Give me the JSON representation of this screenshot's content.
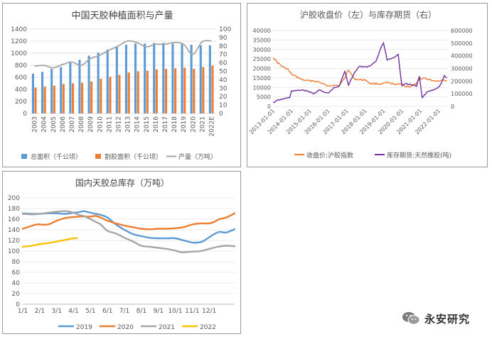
{
  "watermark": "永安研究",
  "charts": [
    {
      "type": "bar+line",
      "title": "中国天胶种植面积与产量",
      "categories": [
        "2003",
        "2004",
        "2005",
        "2006",
        "2007",
        "2008",
        "2009",
        "2010",
        "2011",
        "2012",
        "2013",
        "2014",
        "2015",
        "2016",
        "2017",
        "2018",
        "2019",
        "2020",
        "2021",
        "2022E"
      ],
      "y_left": {
        "ticks": [
          0,
          200,
          400,
          600,
          800,
          1000,
          1200,
          1400
        ],
        "range": [
          0,
          1400
        ]
      },
      "y_right": {
        "ticks": [
          0,
          10,
          20,
          30,
          40,
          50,
          60,
          70,
          80,
          90,
          100
        ],
        "range": [
          0,
          100
        ]
      },
      "series": [
        {
          "name": "总面积（千公顷）",
          "type": "bar",
          "axis": "left",
          "color": "#5b9bd5",
          "values": [
            660,
            690,
            740,
            770,
            860,
            890,
            960,
            1010,
            1060,
            1110,
            1140,
            1160,
            1160,
            1170,
            1170,
            1160,
            1150,
            1140,
            1130,
            1130
          ]
        },
        {
          "name": "割胶面积（千公顷）",
          "type": "bar",
          "axis": "left",
          "color": "#ed7d31",
          "values": [
            430,
            445,
            460,
            490,
            500,
            510,
            530,
            575,
            610,
            640,
            680,
            700,
            710,
            730,
            740,
            750,
            760,
            740,
            770,
            790
          ]
        },
        {
          "name": "产量（万吨）",
          "type": "line",
          "axis": "right",
          "color": "#a5a5a5",
          "values": [
            56,
            57,
            54,
            58,
            61,
            57,
            65,
            69,
            75,
            80,
            86,
            84,
            79,
            82,
            82,
            84,
            82,
            70,
            85,
            86
          ]
        }
      ]
    },
    {
      "type": "line",
      "title": "沪胶收盘价（左）与库存期货（右）",
      "x_ticks": [
        "2013-01-01",
        "2014-01-01",
        "2015-01-01",
        "2016-01-01",
        "2017-01-01",
        "2018-01-01",
        "2019-01-01",
        "2020-01-01",
        "2021-01-01",
        "2022-01-01"
      ],
      "x_range": [
        2013.0,
        2022.5
      ],
      "y_left": {
        "ticks": [
          0,
          5000,
          10000,
          15000,
          20000,
          25000,
          30000,
          35000,
          40000
        ],
        "range": [
          0,
          40000
        ]
      },
      "y_right": {
        "ticks": [
          0,
          100000,
          200000,
          300000,
          400000,
          500000,
          600000
        ],
        "range": [
          0,
          600000
        ]
      },
      "series": [
        {
          "name": "收盘价:沪胶指数",
          "axis": "left",
          "color": "#ed7d31",
          "x": [
            2013.0,
            2013.2,
            2013.5,
            2013.8,
            2014.0,
            2014.3,
            2014.6,
            2014.9,
            2015.2,
            2015.5,
            2015.8,
            2016.0,
            2016.3,
            2016.6,
            2016.9,
            2017.1,
            2017.4,
            2017.7,
            2018.0,
            2018.3,
            2018.6,
            2018.9,
            2019.2,
            2019.5,
            2019.8,
            2020.0,
            2020.2,
            2020.5,
            2020.8,
            2021.0,
            2021.2,
            2021.5,
            2021.8,
            2022.0,
            2022.3,
            2022.45
          ],
          "y": [
            26000,
            23500,
            21000,
            19500,
            17000,
            15500,
            14000,
            13500,
            13500,
            12800,
            11500,
            10500,
            11500,
            11000,
            15000,
            19500,
            14500,
            14000,
            14000,
            12000,
            12000,
            11800,
            12500,
            11800,
            11500,
            11800,
            10500,
            10500,
            12000,
            14500,
            15000,
            14000,
            13500,
            13500,
            14000,
            13500
          ]
        },
        {
          "name": "库存期货:天然橡胶(吨)",
          "axis": "right",
          "color": "#7030a0",
          "x": [
            2013.0,
            2013.3,
            2013.6,
            2013.9,
            2014.0,
            2014.3,
            2014.6,
            2014.9,
            2015.2,
            2015.5,
            2015.8,
            2016.0,
            2016.3,
            2016.6,
            2016.9,
            2017.1,
            2017.4,
            2017.7,
            2018.0,
            2018.3,
            2018.6,
            2018.9,
            2019.0,
            2019.2,
            2019.5,
            2019.8,
            2020.0,
            2020.2,
            2020.5,
            2020.8,
            2020.95,
            2021.1,
            2021.4,
            2021.7,
            2021.9,
            2022.1,
            2022.3,
            2022.45
          ],
          "y": [
            30000,
            50000,
            60000,
            70000,
            120000,
            125000,
            130000,
            120000,
            100000,
            130000,
            110000,
            105000,
            145000,
            160000,
            280000,
            170000,
            260000,
            320000,
            310000,
            320000,
            360000,
            480000,
            500000,
            370000,
            380000,
            410000,
            160000,
            180000,
            170000,
            160000,
            240000,
            70000,
            120000,
            130000,
            140000,
            170000,
            240000,
            225000
          ]
        }
      ]
    },
    {
      "type": "line",
      "title": "国内天胶总库存（万吨）",
      "x_ticks": [
        "1/1",
        "2/1",
        "3/1",
        "4/1",
        "5/1",
        "6/1",
        "7/1",
        "8/1",
        "9/1",
        "10/1",
        "11/1",
        "12/1"
      ],
      "y_axis": {
        "ticks": [
          0,
          20,
          40,
          60,
          80,
          100,
          120,
          140,
          160,
          180,
          200
        ],
        "range": [
          0,
          200
        ]
      },
      "series": [
        {
          "name": "2019",
          "color": "#5b9bd5",
          "x": [
            0,
            0.5,
            1,
            1.5,
            2,
            2.5,
            3,
            3.3,
            3.6,
            4,
            4.3,
            4.6,
            5,
            5.5,
            6,
            6.5,
            7,
            7.5,
            8,
            8.5,
            9,
            9.5,
            10,
            10.3,
            10.6,
            11,
            11.3,
            11.6,
            12,
            12.5
          ],
          "y": [
            171,
            170,
            170,
            171,
            171,
            170,
            172,
            173,
            175,
            172,
            170,
            168,
            163,
            150,
            140,
            132,
            128,
            125,
            124,
            124,
            124,
            120,
            116,
            116,
            118,
            126,
            132,
            136,
            135,
            141
          ]
        },
        {
          "name": "2020",
          "color": "#ed7d31",
          "x": [
            0,
            0.4,
            0.8,
            1,
            1.5,
            2,
            2.5,
            3,
            3.5,
            4,
            4.3,
            4.6,
            5,
            5.5,
            6,
            6.5,
            7,
            7.5,
            8,
            8.5,
            9,
            9.5,
            10,
            10.5,
            11,
            11.3,
            11.6,
            12,
            12.5
          ],
          "y": [
            142,
            146,
            150,
            150,
            150,
            157,
            162,
            164,
            165,
            165,
            166,
            163,
            157,
            152,
            148,
            145,
            142,
            141,
            142,
            142,
            143,
            145,
            150,
            152,
            152,
            155,
            160,
            163,
            171
          ]
        },
        {
          "name": "2021",
          "color": "#a5a5a5",
          "x": [
            0,
            0.5,
            1,
            1.5,
            2,
            2.3,
            2.6,
            3,
            3.3,
            3.6,
            4,
            4.3,
            4.6,
            5,
            5.5,
            6,
            6.5,
            7,
            7.5,
            8,
            8.5,
            9,
            9.3,
            9.6,
            10,
            10.5,
            11,
            11.5,
            12,
            12.5
          ],
          "y": [
            170,
            169,
            170,
            172,
            174,
            175,
            175,
            172,
            168,
            166,
            160,
            155,
            150,
            138,
            133,
            125,
            118,
            110,
            108,
            106,
            104,
            101,
            98,
            98,
            99,
            100,
            104,
            108,
            110,
            109
          ]
        },
        {
          "name": "2022",
          "color": "#ffc000",
          "x": [
            0,
            0.5,
            1,
            1.5,
            2,
            2.5,
            2.8,
            3,
            3.2
          ],
          "y": [
            108,
            110,
            113,
            115,
            118,
            121,
            123,
            124,
            124
          ]
        }
      ]
    }
  ]
}
